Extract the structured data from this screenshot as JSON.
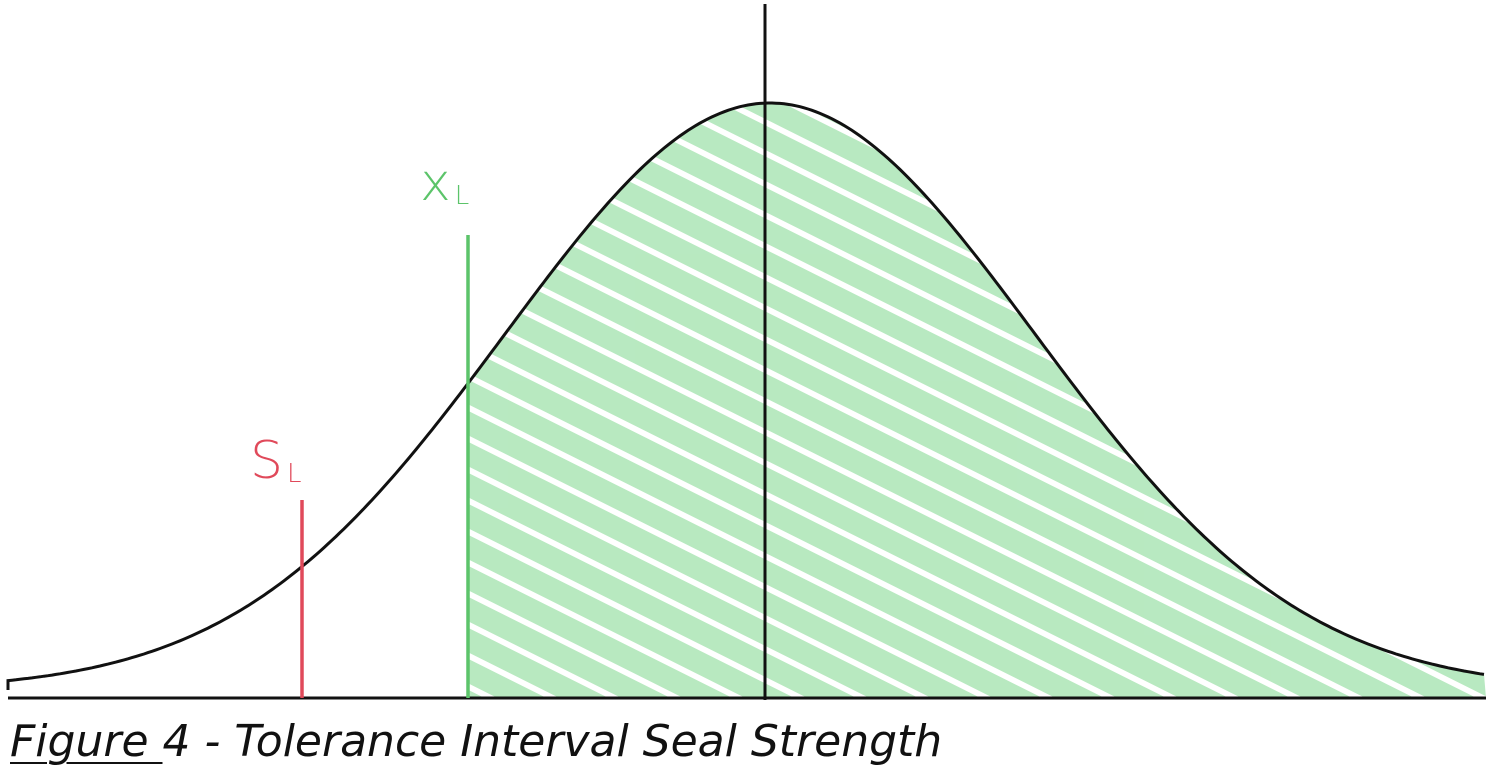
{
  "figure": {
    "labels": {
      "x_limit": "x",
      "x_limit_sub": "L",
      "s_limit": "S",
      "s_limit_sub": "L"
    },
    "colors": {
      "curve": "#111111",
      "x_limit_line": "#5cc46a",
      "s_limit_line": "#e0495a",
      "shading": "#7fd88e",
      "axis": "#111111"
    }
  },
  "caption": {
    "figure_word": "Figure ",
    "rest": "4 - Tolerance Interval Seal Strength"
  }
}
